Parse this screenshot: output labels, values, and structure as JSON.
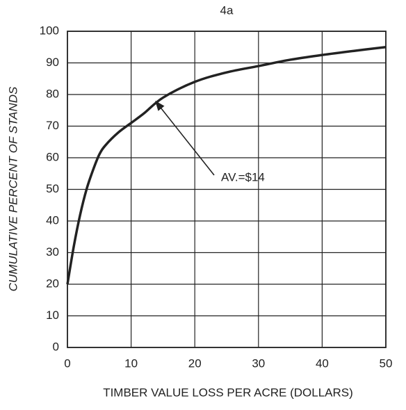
{
  "chart_data": {
    "type": "line",
    "title": "4a",
    "x_label": "TIMBER VALUE LOSS PER ACRE (DOLLARS)",
    "y_label": "CUMULATIVE PERCENT OF STANDS",
    "annotation": "AV.=$14",
    "x": [
      0,
      1,
      2,
      3,
      4,
      5,
      6,
      8,
      10,
      12,
      15,
      20,
      25,
      30,
      35,
      40,
      45,
      50
    ],
    "series": [
      {
        "name": "Cumulative percent",
        "color": "#222222",
        "values": [
          20,
          32,
          42,
          50,
          56,
          61,
          64,
          68,
          71,
          74,
          79,
          84,
          87,
          89,
          91,
          92.5,
          93.8,
          95
        ]
      }
    ],
    "xlim": [
      0,
      50
    ],
    "xticks": [
      0,
      10,
      20,
      30,
      40,
      50
    ],
    "ylim": [
      0,
      100
    ],
    "yticks": [
      0,
      10,
      20,
      30,
      40,
      50,
      60,
      70,
      80,
      90,
      100
    ],
    "grid": true
  }
}
